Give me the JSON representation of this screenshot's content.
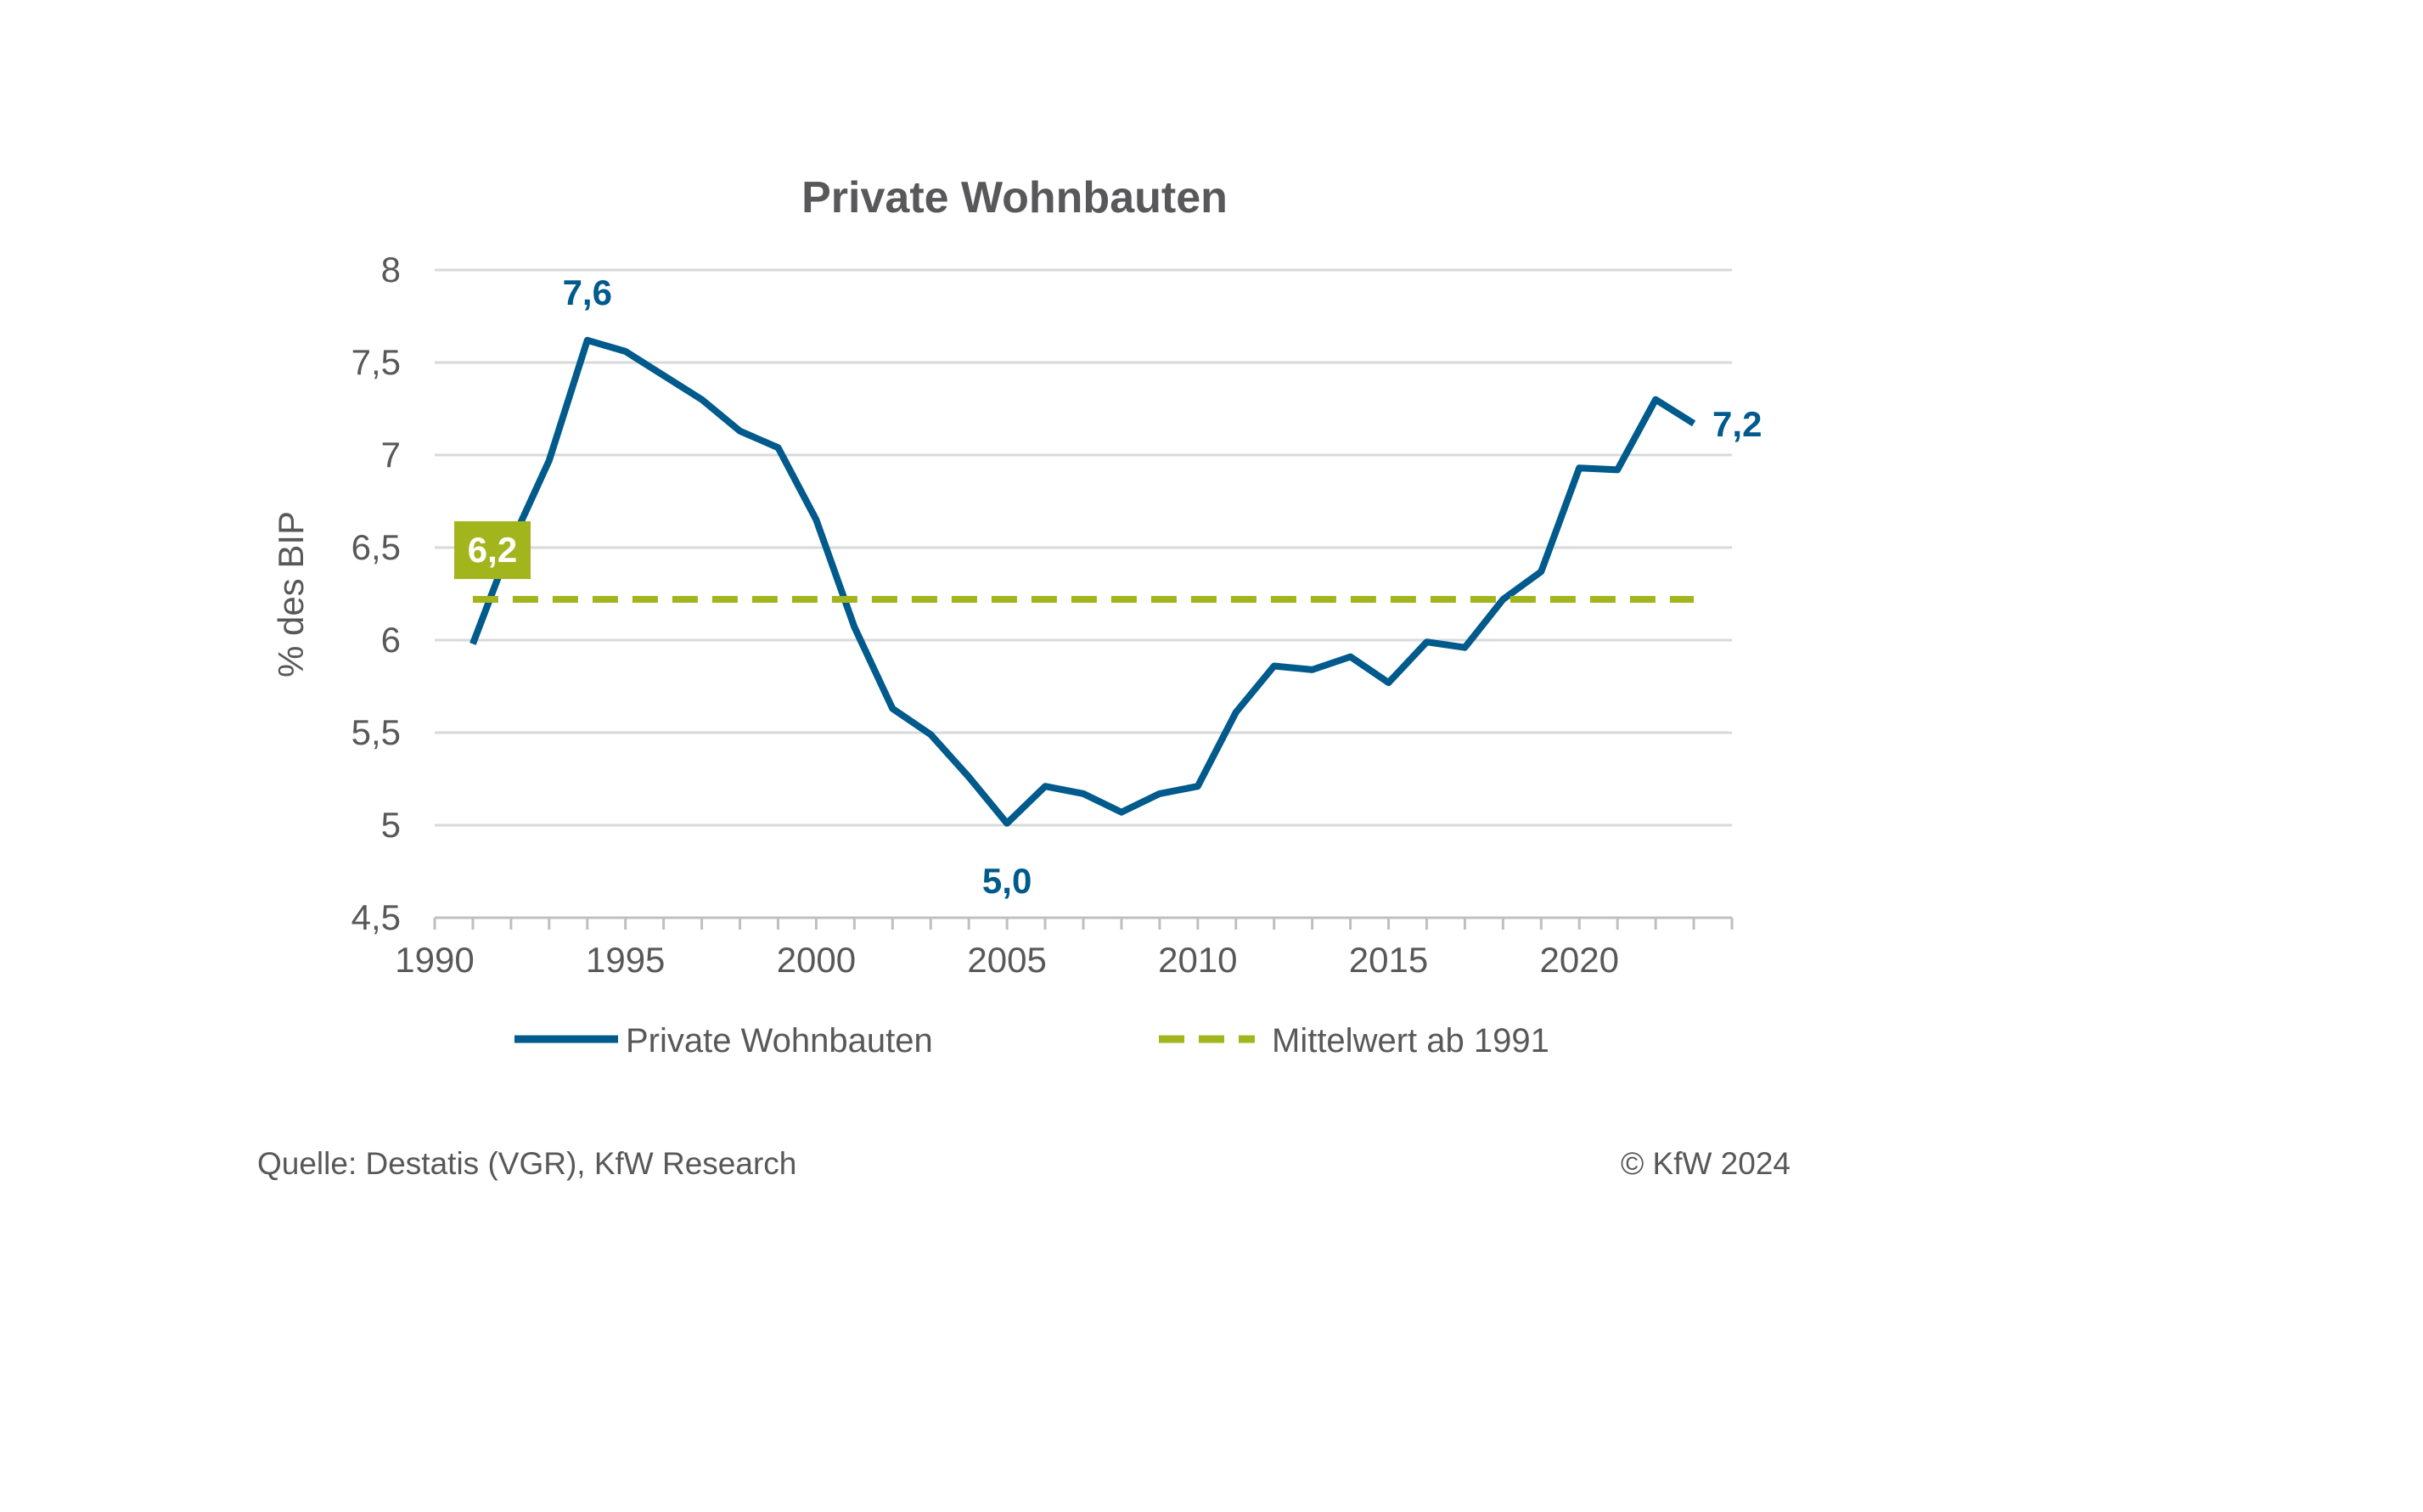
{
  "chart_data": {
    "type": "line",
    "title": "Private Wohnbauten",
    "ylabel": "% des BIP",
    "xlabel": "",
    "ylim": [
      4.5,
      8
    ],
    "xlim": [
      1990,
      2024
    ],
    "grid": true,
    "legend_position": "bottom",
    "y_ticks": [
      "4,5",
      "5",
      "5,5",
      "6",
      "6,5",
      "7",
      "7,5",
      "8"
    ],
    "x_ticks": [
      "1990",
      "1995",
      "2000",
      "2005",
      "2010",
      "2015",
      "2020"
    ],
    "series": [
      {
        "name": "Private Wohnbauten",
        "color": "#005a8c",
        "style": "solid",
        "x": [
          1991,
          1992,
          1993,
          1994,
          1995,
          1996,
          1997,
          1998,
          1999,
          2000,
          2001,
          2002,
          2003,
          2004,
          2005,
          2006,
          2007,
          2008,
          2009,
          2010,
          2011,
          2012,
          2013,
          2014,
          2015,
          2016,
          2017,
          2018,
          2019,
          2020,
          2021,
          2022,
          2023
        ],
        "values": [
          5.98,
          6.52,
          6.97,
          7.62,
          7.56,
          7.43,
          7.3,
          7.13,
          7.04,
          6.65,
          6.07,
          5.63,
          5.49,
          5.26,
          5.01,
          5.21,
          5.17,
          5.07,
          5.17,
          5.21,
          5.61,
          5.86,
          5.84,
          5.91,
          5.77,
          5.99,
          5.96,
          6.22,
          6.37,
          6.93,
          6.92,
          7.3,
          7.17
        ]
      },
      {
        "name": "Mittelwert ab 1991",
        "color": "#a2b51d",
        "style": "dashed",
        "x": [
          1991,
          2023
        ],
        "values": [
          6.22,
          6.22
        ]
      }
    ],
    "annotations": [
      {
        "text": "7,6",
        "x": 1994,
        "y": 7.62,
        "color": "#005a8c",
        "placement": "above"
      },
      {
        "text": "5,0",
        "x": 2005,
        "y": 5.01,
        "color": "#005a8c",
        "placement": "below"
      },
      {
        "text": "7,2",
        "x": 2023,
        "y": 7.17,
        "color": "#005a8c",
        "placement": "right"
      },
      {
        "text": "6,2",
        "x": 1991,
        "y": 6.22,
        "color": "#ffffff",
        "background": "#a2b51d",
        "placement": "above-left"
      }
    ]
  },
  "footer": {
    "source": "Quelle: Destatis (VGR), KfW Research",
    "copyright": "© KfW 2024"
  }
}
